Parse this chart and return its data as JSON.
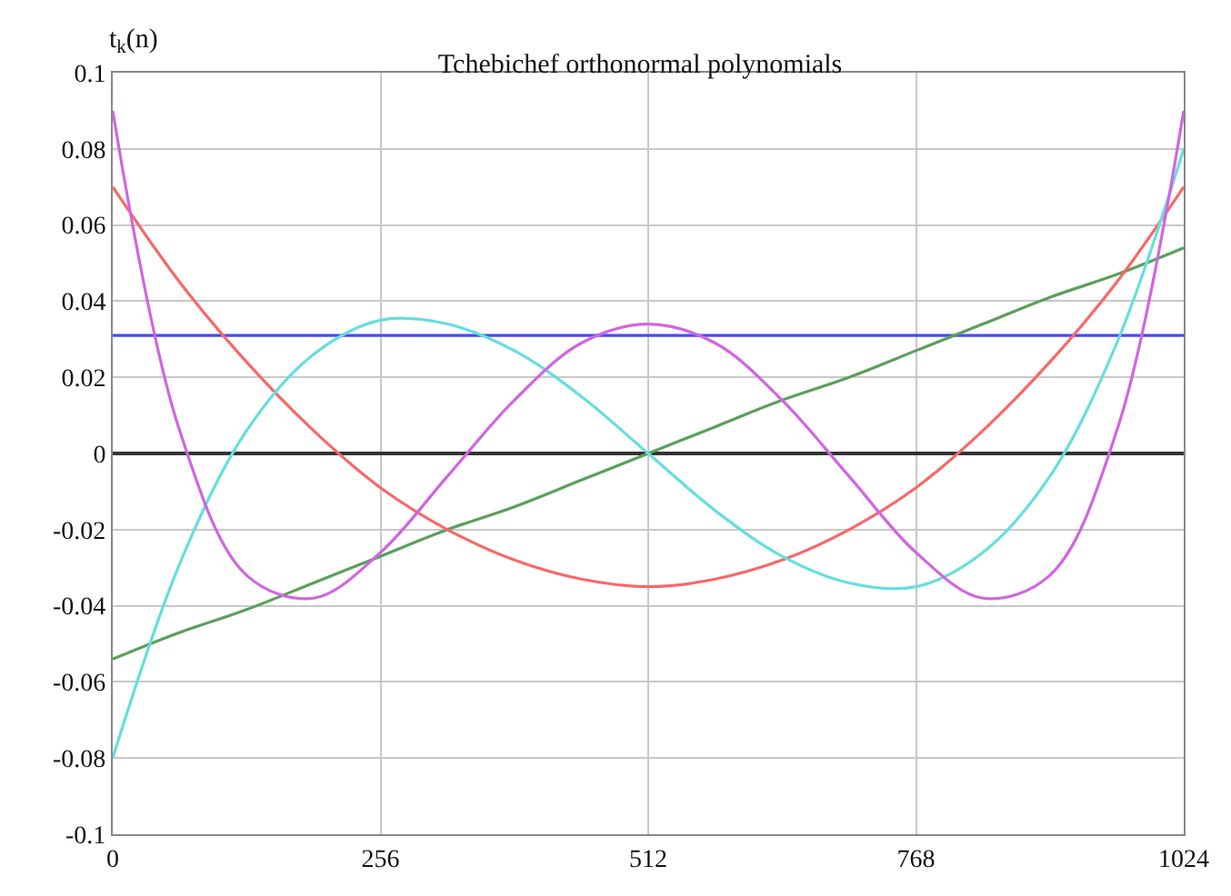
{
  "chart_data": {
    "type": "line",
    "title": "Tchebichef orthonormal polynomials",
    "ylabel": "t$_{k}$(n)",
    "x": [
      0,
      64,
      128,
      192,
      256,
      320,
      384,
      448,
      512,
      576,
      640,
      704,
      768,
      832,
      896,
      960,
      1024
    ],
    "series": [
      {
        "color": "#4848ff",
        "values": [
          0.031,
          0.031,
          0.031,
          0.031,
          0.031,
          0.031,
          0.031,
          0.031,
          0.031,
          0.031,
          0.031,
          0.031,
          0.031,
          0.031,
          0.031,
          0.031,
          0.031
        ]
      },
      {
        "color": "#5aa05a",
        "values": [
          -0.054,
          -0.047,
          -0.041,
          -0.034,
          -0.027,
          -0.02,
          -0.014,
          -0.007,
          0.0,
          0.007,
          0.014,
          0.02,
          0.027,
          0.034,
          0.041,
          0.047,
          0.054
        ]
      },
      {
        "color": "#f86868",
        "values": [
          0.07,
          0.045,
          0.024,
          0.006,
          -0.009,
          -0.02,
          -0.028,
          -0.033,
          -0.035,
          -0.033,
          -0.028,
          -0.02,
          -0.009,
          0.006,
          0.024,
          0.045,
          0.07
        ]
      },
      {
        "color": "#66dede",
        "values": [
          -0.08,
          -0.029,
          0.006,
          0.026,
          0.035,
          0.034,
          0.027,
          0.015,
          0.0,
          -0.015,
          -0.027,
          -0.034,
          -0.035,
          -0.026,
          -0.006,
          0.029,
          0.08
        ]
      },
      {
        "color": "#d066e0",
        "values": [
          0.09,
          0.006,
          -0.032,
          -0.038,
          -0.026,
          -0.006,
          0.014,
          0.029,
          0.034,
          0.029,
          0.014,
          -0.006,
          -0.026,
          -0.038,
          -0.032,
          0.006,
          0.09
        ]
      }
    ],
    "xlim": [
      0,
      1024
    ],
    "xticks": [
      0,
      256,
      512,
      768,
      1024
    ],
    "ylim": [
      -0.1,
      0.1
    ],
    "yticks": [
      -0.1,
      -0.08,
      -0.06,
      -0.04,
      -0.02,
      0,
      0.02,
      0.04,
      0.06,
      0.08,
      0.1
    ],
    "grid": true,
    "marker": "none",
    "line_style": "solid"
  }
}
